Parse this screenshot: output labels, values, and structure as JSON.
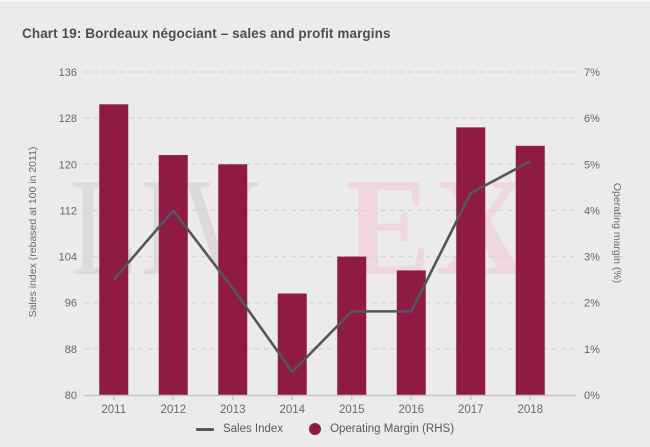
{
  "title": "Chart 19: Bordeaux négociant – sales and profit margins",
  "watermark": {
    "left": "LIV",
    "divider": "|",
    "right": "EX"
  },
  "chart_data": {
    "type": "combo-bar-line",
    "categories": [
      "2011",
      "2012",
      "2013",
      "2014",
      "2015",
      "2016",
      "2017",
      "2018"
    ],
    "series": [
      {
        "name": "Sales Index",
        "type": "line",
        "axis": "left",
        "values": [
          100,
          112,
          98.5,
          84,
          94.5,
          94.5,
          115,
          120.5
        ]
      },
      {
        "name": "Operating Margin (RHS)",
        "type": "bar",
        "axis": "right",
        "values": [
          6.3,
          5.2,
          5.0,
          2.2,
          3.0,
          2.7,
          5.8,
          5.4
        ]
      }
    ],
    "left_axis": {
      "label": "Sales index (rebased at 100 in 2011)",
      "min": 80,
      "max": 136,
      "step": 8,
      "ticks": [
        "80",
        "88",
        "96",
        "104",
        "112",
        "120",
        "128",
        "136"
      ]
    },
    "right_axis": {
      "label": "Operating margin (%)",
      "min": 0,
      "max": 7,
      "step": 1,
      "ticks": [
        "0%",
        "1%",
        "2%",
        "3%",
        "4%",
        "5%",
        "6%",
        "7%"
      ]
    },
    "grid": "dashed-horizontal",
    "legend_position": "bottom"
  },
  "legend": {
    "line_label": "Sales Index",
    "bar_label": "Operating Margin (RHS)"
  },
  "colors": {
    "bar": "#8f1b44",
    "line": "#54565b",
    "background": "#ecebeb",
    "grid": "#d7d5d5",
    "axis_line": "#c6c5c5",
    "tick_text": "#666666",
    "year_text": "#6a6a6a",
    "title_text": "#4b4e55",
    "watermark_gray": "#dcdbdb",
    "watermark_red": "#eed7dd"
  }
}
